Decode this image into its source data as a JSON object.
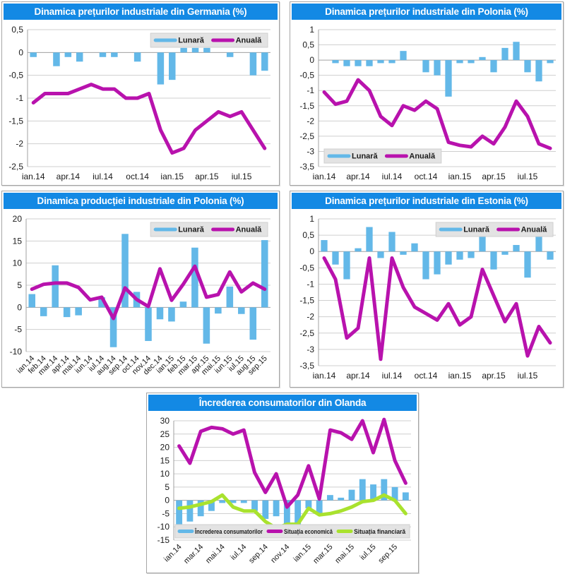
{
  "colors": {
    "title_bar": "#1389e4",
    "title_text": "#ffffff",
    "bar_blue": "#63b8e8",
    "line_magenta": "#b812ad",
    "line_green": "#a9e22e",
    "legend_bg": "#e3e3e3",
    "legend_border": "#cfcfcf",
    "grid": "#cfcfcf",
    "zero_axis": "#a0a0a0",
    "axis_line": "#a0a0a0",
    "tick_text": "#1a1a1a"
  },
  "chart_data": [
    {
      "id": "preturi-industriale-germania",
      "type": "combo",
      "title": "Dinamica prețurilor industriale din Germania (%)",
      "categories": [
        "ian.14",
        "feb.14",
        "mar.14",
        "apr.14",
        "mai.14",
        "iun.14",
        "iul.14",
        "aug.14",
        "sep.14",
        "oct.14",
        "nov.14",
        "dec.14",
        "ian.15",
        "feb.15",
        "mar.15",
        "apr.15",
        "mai.15",
        "iun.15",
        "iul.15",
        "aug.15",
        "sep.15"
      ],
      "x_tick_indices": [
        0,
        3,
        6,
        9,
        12,
        15,
        18
      ],
      "x_tick_rotate": 0,
      "ylim": [
        -2.5,
        0.5
      ],
      "ystep": 0.5,
      "grid": true,
      "legend_position": "top-right",
      "series": [
        {
          "name": "Lunară",
          "type": "bar",
          "color": "#63b8e8",
          "values": [
            -0.1,
            0,
            -0.3,
            -0.1,
            -0.2,
            0,
            -0.1,
            -0.1,
            0,
            -0.2,
            0,
            -0.7,
            -0.6,
            0.1,
            0.1,
            0.1,
            0,
            -0.1,
            0,
            -0.5,
            -0.4
          ]
        },
        {
          "name": "Anuală",
          "type": "line",
          "color": "#b812ad",
          "values": [
            -1.1,
            -0.9,
            -0.9,
            -0.9,
            -0.8,
            -0.7,
            -0.8,
            -0.8,
            -1,
            -1,
            -0.9,
            -1.7,
            -2.2,
            -2.1,
            -1.7,
            -1.5,
            -1.3,
            -1.4,
            -1.3,
            -1.7,
            -2.1
          ]
        }
      ]
    },
    {
      "id": "preturi-industriale-polonia",
      "type": "combo",
      "title": "Dinamica prețurilor industriale din Polonia (%)",
      "categories": [
        "ian.14",
        "feb.14",
        "mar.14",
        "apr.14",
        "mai.14",
        "iun.14",
        "iul.14",
        "aug.14",
        "sep.14",
        "oct.14",
        "nov.14",
        "dec.14",
        "ian.15",
        "feb.15",
        "mar.15",
        "apr.15",
        "mai.15",
        "iun.15",
        "iul.15",
        "aug.15",
        "sep.15"
      ],
      "x_tick_indices": [
        0,
        3,
        6,
        9,
        12,
        15,
        18
      ],
      "x_tick_rotate": 0,
      "ylim": [
        -3.5,
        1
      ],
      "ystep": 0.5,
      "grid": true,
      "legend_position": "bottom-left",
      "series": [
        {
          "name": "Lunară",
          "type": "bar",
          "color": "#63b8e8",
          "values": [
            0,
            -0.1,
            -0.2,
            -0.2,
            -0.2,
            -0.1,
            -0.1,
            0.3,
            0,
            -0.4,
            -0.5,
            -1.2,
            -0.1,
            -0.1,
            0.1,
            -0.4,
            0.4,
            0.6,
            -0.4,
            -0.7,
            -0.1
          ]
        },
        {
          "name": "Anuală",
          "type": "line",
          "color": "#b812ad",
          "values": [
            -1.05,
            -1.45,
            -1.35,
            -0.65,
            -1,
            -1.85,
            -2.15,
            -1.5,
            -1.65,
            -1.35,
            -1.6,
            -2.7,
            -2.8,
            -2.85,
            -2.5,
            -2.75,
            -2.2,
            -1.35,
            -1.85,
            -2.75,
            -2.9
          ]
        }
      ]
    },
    {
      "id": "productie-industriala-polonia",
      "type": "combo",
      "title": "Dinamica producției industriale din Polonia (%)",
      "categories": [
        "ian.14",
        "feb.14",
        "mar.14",
        "apr.14",
        "mai.14",
        "iun.14",
        "iul.14",
        "aug.14",
        "sep.14",
        "oct.14",
        "nov.14",
        "dec.14",
        "ian.15",
        "feb.15",
        "mar.15",
        "apr.15",
        "mai.15",
        "iun.15",
        "iul.15",
        "aug.15",
        "sep.15"
      ],
      "x_tick_indices": [
        0,
        1,
        2,
        3,
        4,
        5,
        6,
        7,
        8,
        9,
        10,
        11,
        12,
        13,
        14,
        15,
        16,
        17,
        18,
        19,
        20
      ],
      "x_tick_rotate": -45,
      "ylim": [
        -10,
        20
      ],
      "ystep": 5,
      "grid": true,
      "legend_position": "top-right",
      "series": [
        {
          "name": "Lunară",
          "type": "bar",
          "color": "#63b8e8",
          "values": [
            3,
            -2,
            9.5,
            -2.2,
            -1.8,
            0,
            2.3,
            -9,
            16.6,
            3.5,
            -7.6,
            -2.7,
            -3.2,
            1.3,
            13.5,
            -8.2,
            -1.4,
            4.7,
            -1.5,
            -7.3,
            15.2
          ]
        },
        {
          "name": "Anuală",
          "type": "line",
          "color": "#b812ad",
          "values": [
            4.1,
            5.2,
            5.5,
            5.5,
            4.5,
            1.7,
            2.3,
            -2.5,
            4.4,
            1.8,
            0.2,
            8.7,
            1.6,
            5.2,
            9.3,
            2.3,
            2.9,
            8,
            3.5,
            5.5,
            4.1
          ]
        }
      ]
    },
    {
      "id": "preturi-industriale-estonia",
      "type": "combo",
      "title": "Dinamica prețurilor industriale din Estonia (%)",
      "categories": [
        "ian.14",
        "feb.14",
        "mar.14",
        "apr.14",
        "mai.14",
        "iun.14",
        "iul.14",
        "aug.14",
        "sep.14",
        "oct.14",
        "nov.14",
        "dec.14",
        "ian.15",
        "feb.15",
        "mar.15",
        "apr.15",
        "mai.15",
        "iun.15",
        "iul.15",
        "aug.15",
        "sep.15"
      ],
      "x_tick_indices": [
        0,
        3,
        6,
        9,
        12,
        15,
        18
      ],
      "x_tick_rotate": 0,
      "ylim": [
        -3.5,
        1
      ],
      "ystep": 0.5,
      "grid": true,
      "legend_position": "top-right",
      "series": [
        {
          "name": "Lunară",
          "type": "bar",
          "color": "#63b8e8",
          "values": [
            0.35,
            -0.4,
            -0.85,
            0.1,
            0.75,
            -0.2,
            0.6,
            -0.1,
            0.25,
            -0.85,
            -0.7,
            -0.4,
            -0.25,
            -0.2,
            0.55,
            -0.55,
            -0.1,
            0.2,
            -0.8,
            0.6,
            -0.25
          ]
        },
        {
          "name": "Anuală",
          "type": "line",
          "color": "#b812ad",
          "values": [
            -0.2,
            -0.85,
            -2.65,
            -2.35,
            -0.2,
            -3.3,
            -0.2,
            -1.1,
            -1.7,
            -1.9,
            -2.1,
            -1.6,
            -2.25,
            -2,
            -0.55,
            -1.35,
            -2.15,
            -1.6,
            -3.2,
            -2.3,
            -2.8
          ]
        }
      ]
    },
    {
      "id": "incredere-consumatori-olanda",
      "type": "combo",
      "title": "Încrederea consumatorilor din Olanda",
      "categories": [
        "ian.14",
        "feb.14",
        "mar.14",
        "apr.14",
        "mai.14",
        "iun.14",
        "iul.14",
        "aug.14",
        "sep.14",
        "oct.14",
        "nov.14",
        "dec.14",
        "ian.15",
        "feb.15",
        "mar.15",
        "apr.15",
        "mai.15",
        "iun.15",
        "iul.15",
        "aug.15",
        "sep.15",
        "oct.15"
      ],
      "x_tick_indices": [
        0,
        2,
        4,
        6,
        8,
        10,
        12,
        14,
        16,
        18,
        20
      ],
      "x_tick_rotate": -45,
      "ylim": [
        -15,
        30
      ],
      "ystep": 5,
      "grid": true,
      "legend_position": "bottom-wide",
      "series": [
        {
          "name": "Încrederea consumatorilor",
          "type": "bar",
          "color": "#63b8e8",
          "values": [
            -9,
            -8,
            -6,
            -4,
            -1,
            -1,
            -1,
            -4,
            -7,
            -6,
            -10,
            -10,
            -3,
            -5,
            2,
            1,
            4,
            8,
            6,
            8,
            5,
            3
          ]
        },
        {
          "name": "Situația economică",
          "type": "line",
          "color": "#b812ad",
          "values": [
            20.5,
            14,
            26,
            27.5,
            27,
            25,
            26.5,
            10.5,
            3,
            10,
            -2.5,
            2,
            13,
            0.5,
            26.5,
            25.5,
            23,
            30,
            18,
            30.5,
            15,
            6.5
          ]
        },
        {
          "name": "Situația financiară",
          "type": "line",
          "color": "#a9e22e",
          "values": [
            -3,
            -2.5,
            -1.5,
            -0.5,
            2,
            -2.5,
            -4,
            -4,
            -8,
            -10.5,
            -9,
            -9,
            -3,
            -5.5,
            -5,
            -4,
            -2.5,
            -0.5,
            0,
            2,
            0,
            -5
          ]
        }
      ]
    }
  ]
}
